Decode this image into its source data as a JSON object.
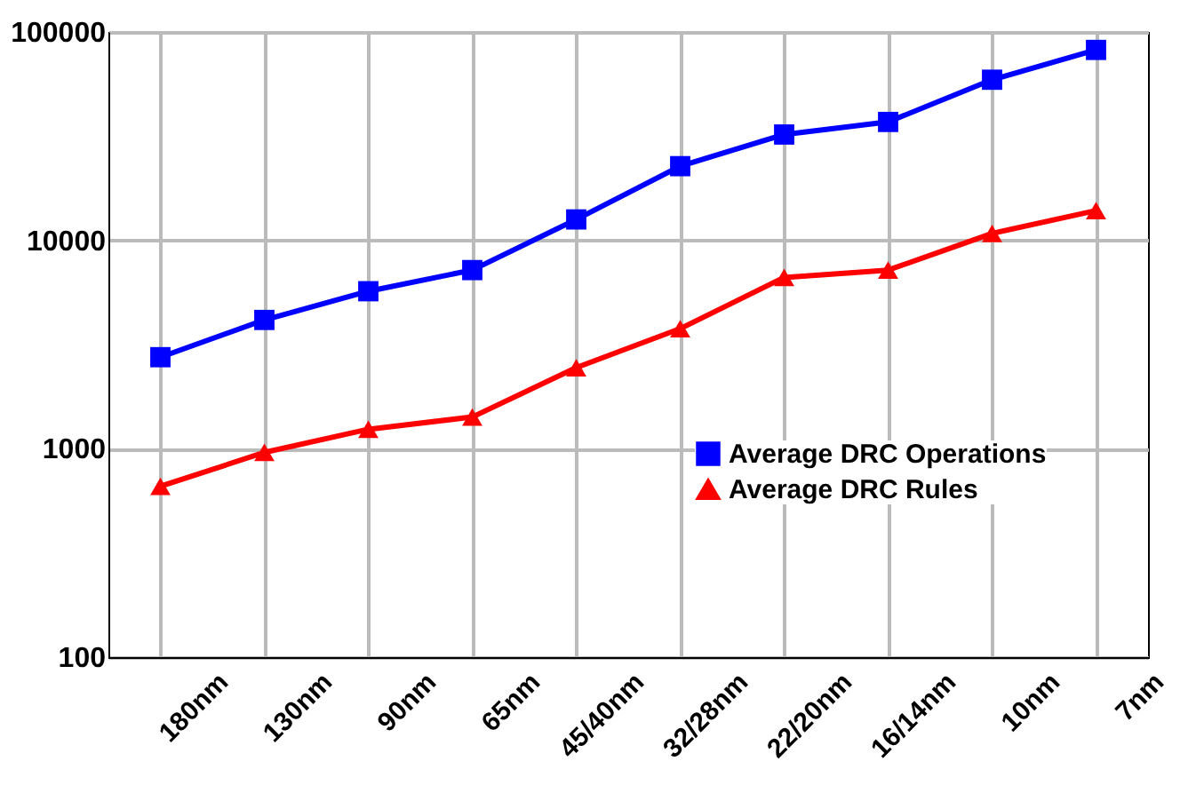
{
  "chart_data": {
    "type": "line",
    "categories": [
      "180nm",
      "130nm",
      "90nm",
      "65nm",
      "45/40nm",
      "32/28nm",
      "22/20nm",
      "16/14nm",
      "10nm",
      "7nm"
    ],
    "series": [
      {
        "name": "Average DRC Operations",
        "color": "#0000ff",
        "marker": "square",
        "values": [
          2750,
          4150,
          5700,
          7200,
          12600,
          22700,
          32200,
          37000,
          59000,
          82000
        ]
      },
      {
        "name": "Average DRC Rules",
        "color": "#ff0000",
        "marker": "triangle",
        "values": [
          660,
          960,
          1240,
          1420,
          2450,
          3770,
          6640,
          7200,
          10800,
          13900
        ]
      }
    ],
    "log": "y",
    "ylim": [
      100,
      100000
    ],
    "yticks": [
      100,
      1000,
      10000,
      100000
    ],
    "grid": true,
    "legend": "right"
  }
}
